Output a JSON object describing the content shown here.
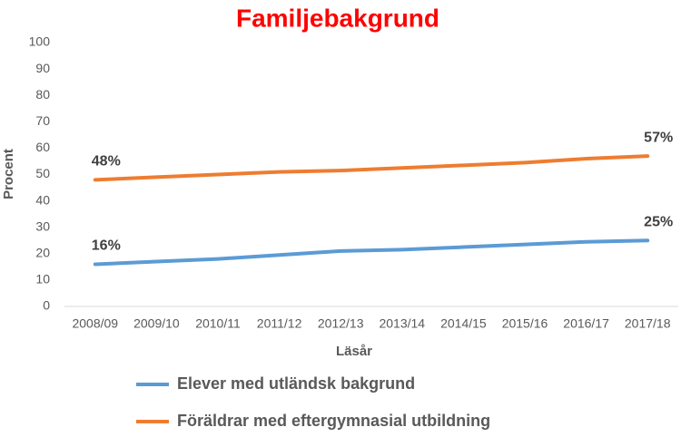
{
  "chart_data": {
    "type": "line",
    "title": "Familjebakgrund",
    "x_label": "Läsår",
    "y_label": "Procent",
    "categories": [
      "2008/09",
      "2009/10",
      "2010/11",
      "2011/12",
      "2012/13",
      "2013/14",
      "2014/15",
      "2015/16",
      "2016/17",
      "2017/18"
    ],
    "series": [
      {
        "name": "Elever med utländsk bakgrund",
        "color": "#5b9bd5",
        "values": [
          16,
          17,
          18,
          19.5,
          21,
          21.5,
          22.5,
          23.5,
          24.5,
          25
        ],
        "value_labels": [
          "16%",
          null,
          null,
          null,
          null,
          null,
          null,
          null,
          null,
          "25%"
        ]
      },
      {
        "name": "Föräldrar med eftergymnasial utbildning",
        "color": "#ed7d31",
        "values": [
          48,
          49,
          50,
          51,
          51.5,
          52.5,
          53.5,
          54.5,
          56,
          57
        ],
        "value_labels": [
          "48%",
          null,
          null,
          null,
          null,
          null,
          null,
          null,
          null,
          "57%"
        ]
      }
    ],
    "ylim": [
      0,
      100
    ],
    "yticks": [
      0,
      10,
      20,
      30,
      40,
      50,
      60,
      70,
      80,
      90,
      100
    ],
    "grid": false
  }
}
